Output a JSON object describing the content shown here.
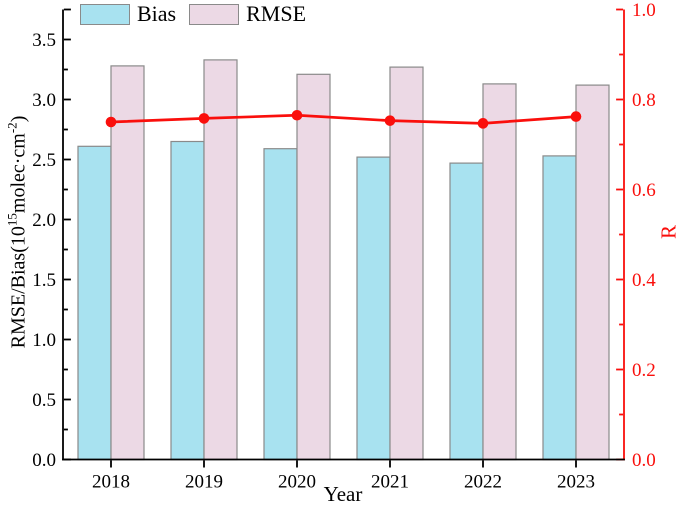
{
  "chart_data": {
    "type": "bar",
    "title": "",
    "x": {
      "label": "Year",
      "categories": [
        "2018",
        "2019",
        "2020",
        "2021",
        "2022",
        "2023"
      ]
    },
    "bars": [
      {
        "name": "Bias",
        "fill": "#a8e2f0",
        "values": [
          2.61,
          2.65,
          2.59,
          2.52,
          2.47,
          2.53
        ]
      },
      {
        "name": "RMSE",
        "fill": "#ecd9e5",
        "values": [
          3.28,
          3.33,
          3.21,
          3.27,
          3.13,
          3.12
        ]
      }
    ],
    "line": {
      "name": "R",
      "axis": "right",
      "color": "#fa0f0c",
      "values": [
        0.75,
        0.758,
        0.765,
        0.753,
        0.747,
        0.762
      ]
    },
    "left_axis": {
      "label": "RMSE/Bias(10^15 molec·cm^-2)",
      "label_parts": {
        "p1": "RMSE/Bias(10",
        "sup1": "15",
        "p2": "molec·cm",
        "sup2": "-2",
        "p3": ")"
      },
      "range": [
        0,
        3.75
      ],
      "major_step": 0.5,
      "minor_step": 0.25,
      "major_tick_labels": [
        "0.0",
        "0.5",
        "1.0",
        "1.5",
        "2.0",
        "2.5",
        "3.0",
        "3.5"
      ],
      "color": "#000000"
    },
    "right_axis": {
      "label": "R",
      "range": [
        0,
        1.0
      ],
      "major_step": 0.2,
      "minor_step": 0.1,
      "major_tick_labels": [
        "0.0",
        "0.2",
        "0.4",
        "0.6",
        "0.8",
        "1.0"
      ],
      "color": "#fa0f0c"
    },
    "bar_edge_color": "#8a8a8a",
    "legend_position": "top-left",
    "grid": false
  }
}
